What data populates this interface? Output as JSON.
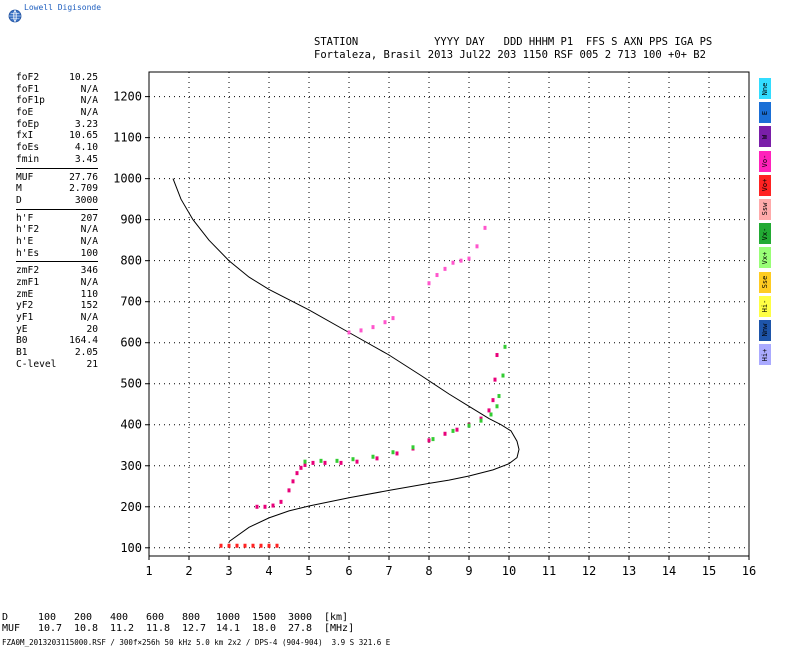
{
  "brand": {
    "text": "Lowell Digisonde",
    "icon": "globe-icon"
  },
  "header": {
    "line1": "STATION            YYYY DAY   DDD HHHM P1  FFS S AXN PPS IGA PS",
    "line2": "Fortaleza, Brasil 2013 Jul22 203 1150 RSF 005 2 713 100 +0+ B2"
  },
  "params": [
    [
      {
        "name": "foF2",
        "value": "10.25"
      },
      {
        "name": "foF1",
        "value": "N/A"
      },
      {
        "name": "foF1p",
        "value": "N/A"
      },
      {
        "name": "foE",
        "value": "N/A"
      },
      {
        "name": "foEp",
        "value": "3.23"
      },
      {
        "name": "fxI",
        "value": "10.65"
      },
      {
        "name": "foEs",
        "value": "4.10"
      },
      {
        "name": "fmin",
        "value": "3.45"
      }
    ],
    [
      {
        "name": "MUF",
        "value": "27.76"
      },
      {
        "name": "M",
        "value": "2.709"
      },
      {
        "name": "D",
        "value": "3000"
      }
    ],
    [
      {
        "name": "h'F",
        "value": "207"
      },
      {
        "name": "h'F2",
        "value": "N/A"
      },
      {
        "name": "h'E",
        "value": "N/A"
      },
      {
        "name": "h'Es",
        "value": "100"
      }
    ],
    [
      {
        "name": "zmF2",
        "value": "346"
      },
      {
        "name": "zmF1",
        "value": "N/A"
      },
      {
        "name": "zmE",
        "value": "110"
      },
      {
        "name": "yF2",
        "value": "152"
      },
      {
        "name": "yF1",
        "value": "N/A"
      },
      {
        "name": "yE",
        "value": "20"
      },
      {
        "name": "B0",
        "value": "164.4"
      },
      {
        "name": "B1",
        "value": "2.05"
      },
      {
        "name": "C-level",
        "value": "21"
      }
    ]
  ],
  "legend": [
    {
      "label": "Nne",
      "color": "#33ddff"
    },
    {
      "label": "E",
      "color": "#1a6fd6"
    },
    {
      "label": "W",
      "color": "#7a1ea8"
    },
    {
      "label": "Vo-",
      "color": "#ff22bb"
    },
    {
      "label": "Vo+",
      "color": "#ff2222"
    },
    {
      "label": "Ssw",
      "color": "#ffaaaa"
    },
    {
      "label": "Vx-",
      "color": "#22aa33"
    },
    {
      "label": "Vx+",
      "color": "#99ff77"
    },
    {
      "label": "Sse",
      "color": "#ffcc22"
    },
    {
      "label": "Hi-",
      "color": "#ffff44"
    },
    {
      "label": "Nnw",
      "color": "#1e55aa"
    },
    {
      "label": "Hi+",
      "color": "#aaaaff"
    }
  ],
  "muf_table": {
    "d_label": "D",
    "muf_label": "MUF",
    "distances": [
      "100",
      "200",
      "400",
      "600",
      "800",
      "1000",
      "1500",
      "3000"
    ],
    "mufs": [
      "10.7",
      "10.8",
      "11.2",
      "11.8",
      "12.7",
      "14.1",
      "18.0",
      "27.8"
    ],
    "d_unit": "[km]",
    "muf_unit": "[MHz]"
  },
  "footer": "FZA0M_2013203115000.RSF / 300f×256h 50 kHz 5.0 km 2x2 / DPS-4 (904-904)  3.9 S 321.6 E",
  "chart_data": {
    "type": "scatter",
    "title": "",
    "xlabel": "",
    "ylabel": "",
    "xlim": [
      1,
      16
    ],
    "ylim": [
      80,
      1260
    ],
    "xticks": [
      1,
      2,
      3,
      4,
      5,
      6,
      7,
      8,
      9,
      10,
      11,
      12,
      13,
      14,
      15,
      16
    ],
    "yticks": [
      100,
      200,
      300,
      400,
      500,
      600,
      700,
      800,
      900,
      1000,
      1100,
      1200
    ],
    "grid": true,
    "profile": {
      "x": [
        1.6,
        1.8,
        2.1,
        2.5,
        3.0,
        3.5,
        4.0,
        5.0,
        6.0,
        7.0,
        7.8,
        8.5,
        9.0,
        9.5,
        9.8,
        10.05,
        10.2,
        10.25,
        10.2,
        10.0,
        9.6,
        9.0,
        8.5,
        8.0,
        7.0,
        6.0,
        5.0,
        4.5,
        4.0,
        3.5,
        3.0
      ],
      "y": [
        1000,
        950,
        900,
        850,
        800,
        760,
        730,
        680,
        625,
        570,
        520,
        475,
        445,
        415,
        400,
        385,
        360,
        340,
        320,
        305,
        290,
        275,
        265,
        257,
        240,
        222,
        202,
        190,
        173,
        150,
        115
      ]
    },
    "series": [
      {
        "name": "O-mode",
        "color": "#e8007a",
        "x": [
          3.7,
          3.9,
          4.1,
          4.3,
          4.5,
          4.6,
          4.7,
          4.8,
          4.9,
          5.1,
          5.4,
          5.8,
          6.2,
          6.7,
          7.2,
          7.6,
          8.0,
          8.4,
          8.7,
          9.0,
          9.3,
          9.5,
          9.6,
          9.65,
          9.7
        ],
        "y": [
          200,
          200,
          203,
          212,
          240,
          262,
          282,
          295,
          302,
          307,
          307,
          307,
          310,
          318,
          330,
          342,
          362,
          378,
          388,
          400,
          415,
          435,
          460,
          510,
          570
        ]
      },
      {
        "name": "X-mode",
        "color": "#33cc33",
        "x": [
          4.9,
          5.3,
          5.7,
          6.1,
          6.6,
          7.1,
          7.6,
          8.1,
          8.6,
          9.0,
          9.3,
          9.55,
          9.7,
          9.75,
          9.85,
          9.9
        ],
        "y": [
          310,
          312,
          312,
          316,
          322,
          333,
          345,
          365,
          385,
          398,
          410,
          425,
          445,
          470,
          520,
          590
        ]
      },
      {
        "name": "Es",
        "color": "#ff2222",
        "x": [
          2.8,
          3.0,
          3.2,
          3.4,
          3.6,
          3.8,
          4.0,
          4.2
        ],
        "y": [
          105,
          105,
          105,
          105,
          105,
          105,
          105,
          105
        ]
      },
      {
        "name": "Spread-F",
        "color": "#ff55cc",
        "x": [
          6.0,
          6.3,
          6.6,
          6.9,
          7.1,
          8.0,
          8.2,
          8.4,
          8.6,
          8.8,
          9.0,
          9.2,
          9.4
        ],
        "y": [
          625,
          630,
          638,
          650,
          660,
          745,
          765,
          780,
          795,
          800,
          805,
          835,
          880
        ]
      }
    ]
  }
}
